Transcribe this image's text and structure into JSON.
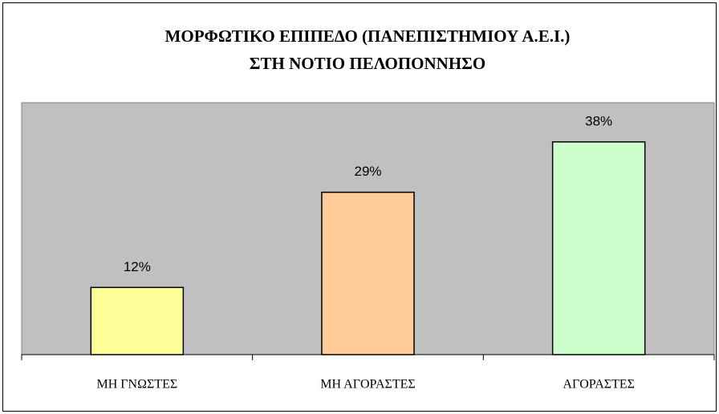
{
  "chart_data": {
    "type": "bar",
    "title": [
      "ΜΟΡΦΩΤΙΚΟ ΕΠΙΠΕΔΟ (ΠΑΝΕΠΙΣΤΗΜΙΟΥ Α.Ε.Ι.)",
      "ΣΤΗ ΝΟΤΙΟ ΠΕΛΟΠΟΝΝΗΣΟ"
    ],
    "categories": [
      "ΜΗ ΓΝΩΣΤΕΣ",
      "ΜΗ ΑΓΟΡΑΣΤΕΣ",
      "ΑΓΟΡΑΣΤΕΣ"
    ],
    "values": [
      12,
      29,
      38
    ],
    "value_labels": [
      "12%",
      "29%",
      "38%"
    ],
    "colors": [
      "#ffff99",
      "#ffcc99",
      "#ccffcc"
    ],
    "ylim": [
      0,
      45
    ],
    "grid": false
  }
}
